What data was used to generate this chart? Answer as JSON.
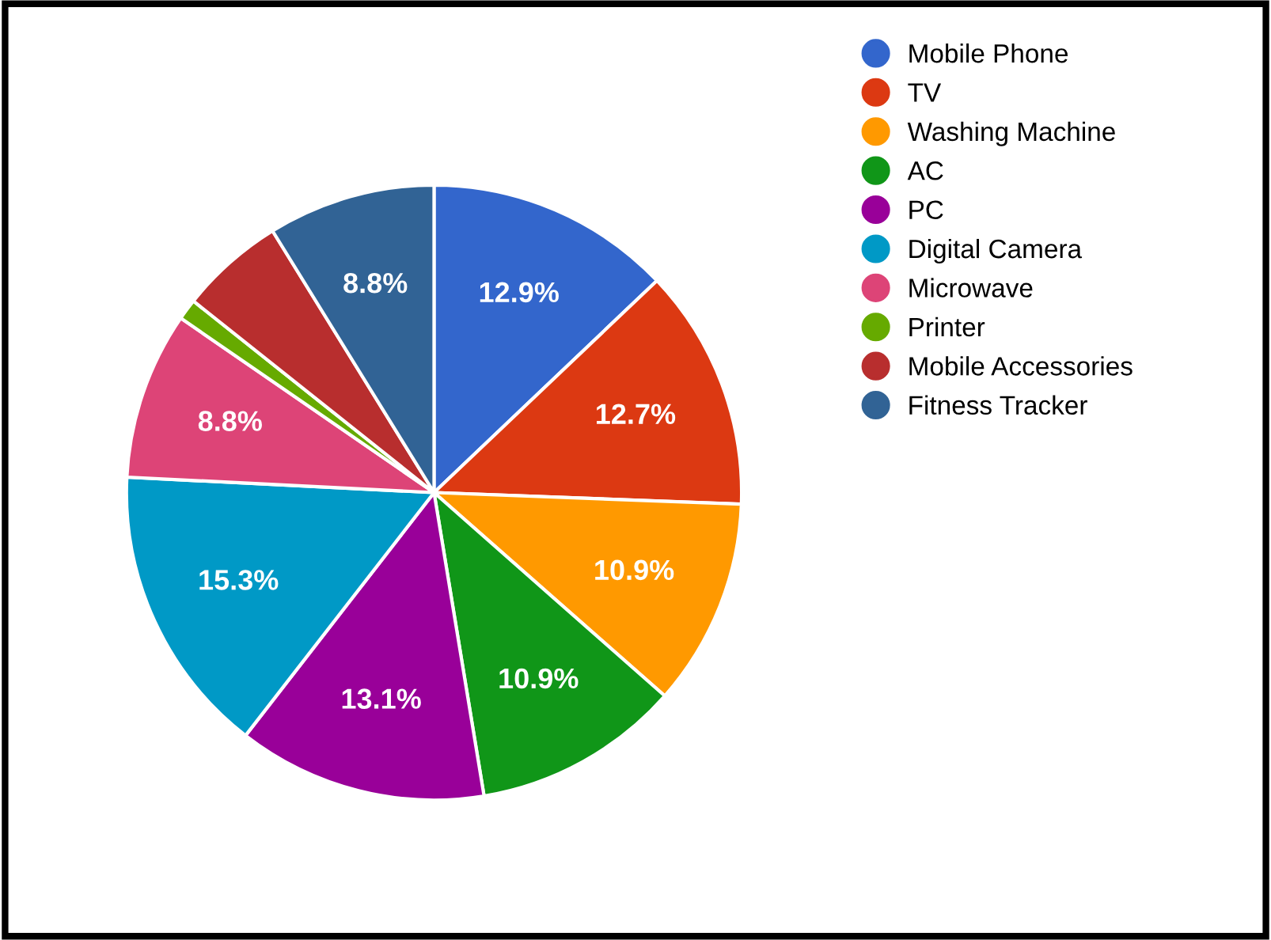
{
  "chart_data": {
    "type": "pie",
    "categories": [
      "Mobile Phone",
      "TV",
      "Washing Machine",
      "AC",
      "PC",
      "Digital Camera",
      "Microwave",
      "Printer",
      "Mobile Accessories",
      "Fitness Tracker"
    ],
    "values": [
      12.9,
      12.7,
      10.9,
      10.9,
      13.1,
      15.3,
      8.8,
      1.1,
      5.5,
      8.8
    ],
    "colors": [
      "#3366cc",
      "#dc3912",
      "#ff9900",
      "#109618",
      "#990099",
      "#0099c6",
      "#dd4477",
      "#66aa00",
      "#b82e2e",
      "#316395"
    ],
    "value_labels": [
      "12.9%",
      "12.7%",
      "10.9%",
      "10.9%",
      "13.1%",
      "15.3%",
      "8.8%",
      null,
      null,
      "8.8%"
    ],
    "legend": "top right"
  }
}
